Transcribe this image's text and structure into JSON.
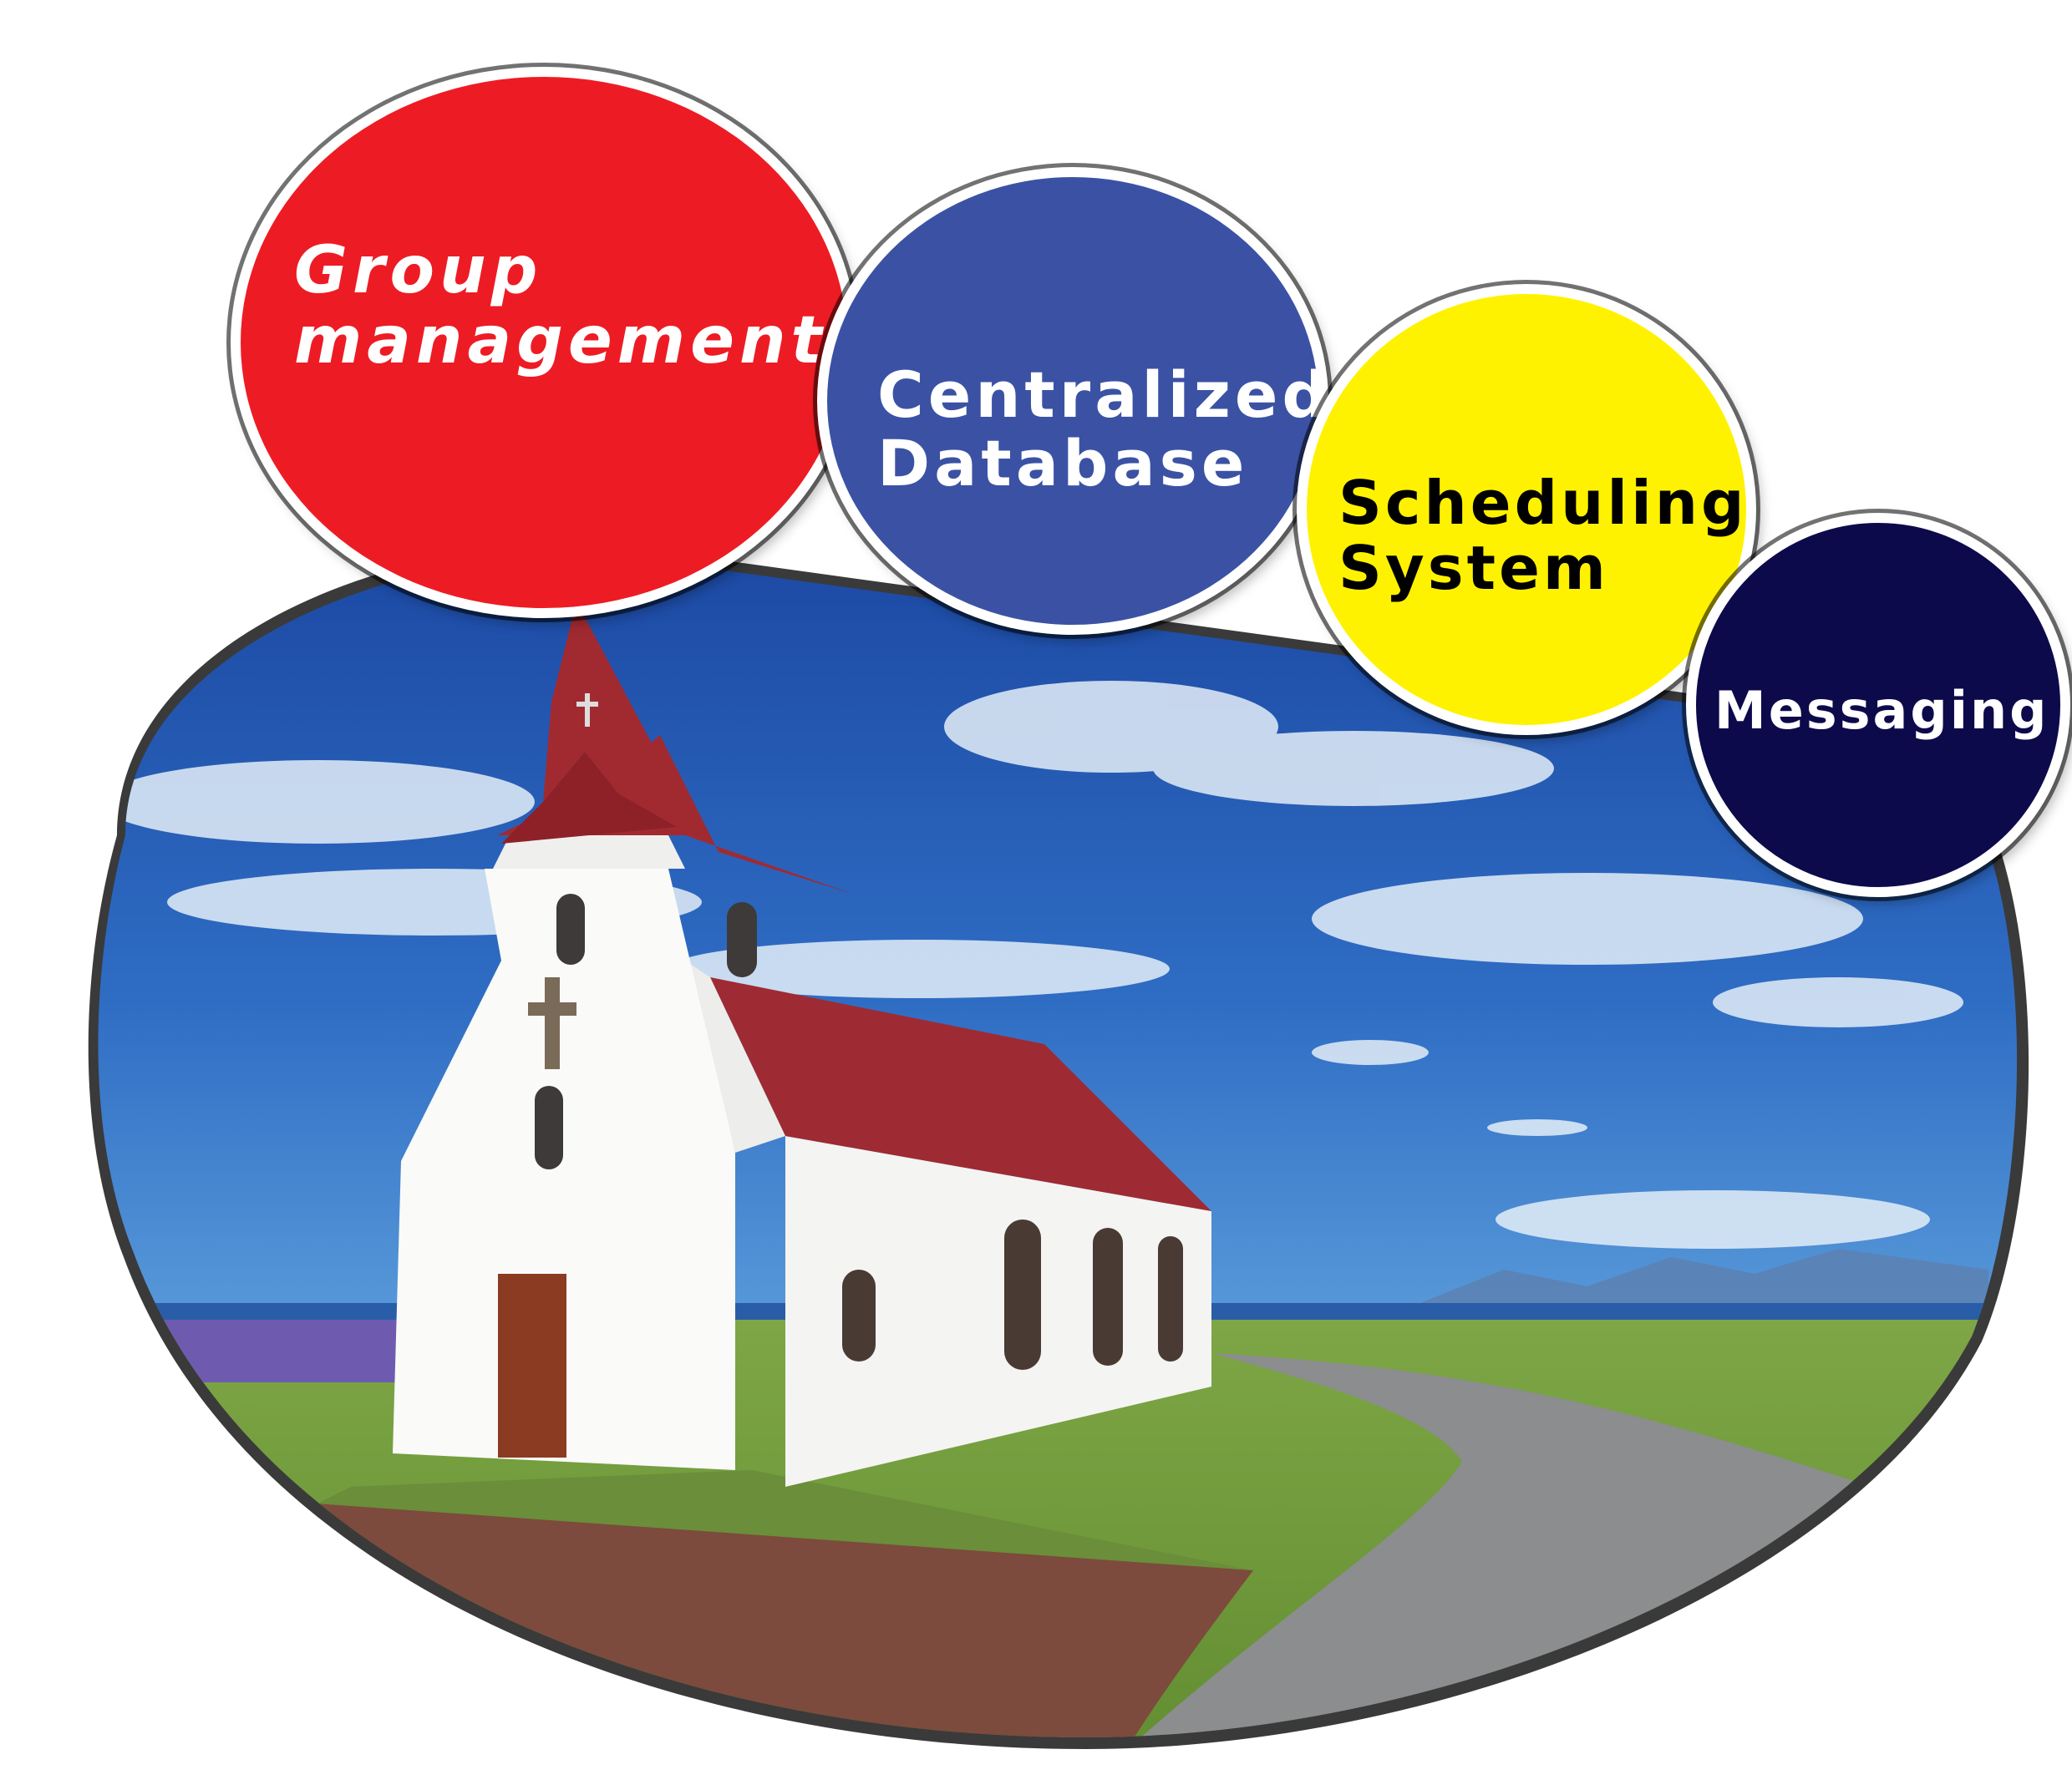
{
  "colors": {
    "group": "#ED1C24",
    "database": "#3B52A4",
    "scheduling": "#FFF200",
    "messaging": "#0D0A4B",
    "sky_top": "#1F4FA8",
    "sky_bottom": "#3E82CF",
    "grass": "#6C9A3A",
    "gravel": "#8A8C8E",
    "path": "#7A4A3C",
    "roof": "#9B2A32"
  },
  "bubbles": {
    "group": {
      "line1": "Group",
      "line2": "management"
    },
    "database": {
      "line1": "Centralized",
      "line2": "Database"
    },
    "scheduling": {
      "line1": "Scheduling",
      "line2": "System"
    },
    "messaging": {
      "line1": "Messaging"
    }
  },
  "photo": {
    "subject": "white church with red roof under blue sky"
  }
}
